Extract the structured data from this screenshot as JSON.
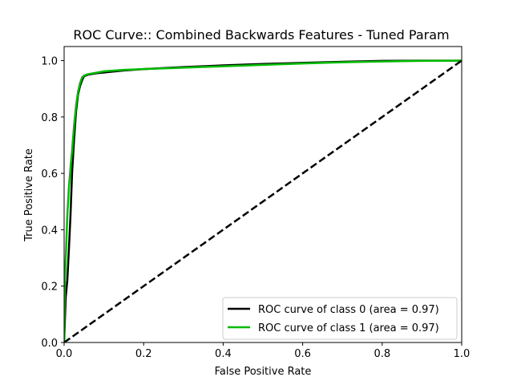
{
  "chart_data": {
    "type": "line",
    "title": "ROC Curve:: Combined Backwards Features - Tuned Param",
    "xlabel": "False Positive Rate",
    "ylabel": "True Positive Rate",
    "xlim": [
      0.0,
      1.0
    ],
    "ylim": [
      0.0,
      1.05
    ],
    "x_ticks": [
      0.0,
      0.2,
      0.4,
      0.6,
      0.8,
      1.0
    ],
    "x_tick_labels": [
      "0.0",
      "0.2",
      "0.4",
      "0.6",
      "0.8",
      "1.0"
    ],
    "y_ticks": [
      0.0,
      0.2,
      0.4,
      0.6,
      0.8,
      1.0
    ],
    "y_tick_labels": [
      "0.0",
      "0.2",
      "0.4",
      "0.6",
      "0.8",
      "1.0"
    ],
    "grid": false,
    "legend_position": "lower-right",
    "series": [
      {
        "name": "ROC curve of class 0 (area = 0.97)",
        "color": "#000000",
        "x": [
          0.0,
          0.004,
          0.008,
          0.012,
          0.016,
          0.02,
          0.025,
          0.03,
          0.035,
          0.04,
          0.045,
          0.05,
          0.06,
          0.08,
          0.1,
          0.15,
          0.2,
          0.3,
          0.4,
          0.5,
          0.6,
          0.7,
          0.8,
          0.9,
          1.0
        ],
        "y": [
          0.0,
          0.16,
          0.22,
          0.33,
          0.45,
          0.6,
          0.72,
          0.82,
          0.88,
          0.91,
          0.93,
          0.945,
          0.95,
          0.955,
          0.958,
          0.965,
          0.97,
          0.977,
          0.983,
          0.988,
          0.992,
          0.996,
          0.999,
          1.0,
          1.0
        ]
      },
      {
        "name": "ROC curve of class 1 (area = 0.97)",
        "color": "#00bb00",
        "x": [
          0.0,
          0.002,
          0.004,
          0.008,
          0.012,
          0.016,
          0.02,
          0.025,
          0.03,
          0.035,
          0.04,
          0.045,
          0.05,
          0.06,
          0.08,
          0.1,
          0.15,
          0.2,
          0.3,
          0.4,
          0.5,
          0.6,
          0.7,
          0.8,
          0.9,
          1.0
        ],
        "y": [
          0.0,
          0.22,
          0.3,
          0.45,
          0.55,
          0.62,
          0.68,
          0.77,
          0.84,
          0.89,
          0.92,
          0.94,
          0.947,
          0.952,
          0.957,
          0.962,
          0.967,
          0.97,
          0.975,
          0.98,
          0.985,
          0.99,
          0.994,
          0.997,
          0.999,
          1.0
        ]
      },
      {
        "name": "",
        "color": "#000000",
        "dashed": true,
        "x": [
          0.0,
          1.0
        ],
        "y": [
          0.0,
          1.0
        ]
      }
    ]
  }
}
